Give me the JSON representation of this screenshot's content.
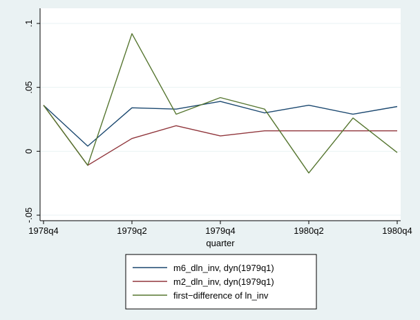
{
  "chart_data": {
    "type": "line",
    "x": [
      "1978q4",
      "1979q1",
      "1979q2",
      "1979q3",
      "1979q4",
      "1980q1",
      "1980q2",
      "1980q3",
      "1980q4"
    ],
    "x_tick_labels": [
      "1978q4",
      "1979q2",
      "1979q4",
      "1980q2",
      "1980q4"
    ],
    "xlabel": "quarter",
    "ylabel": "",
    "ylim": [
      -0.05,
      0.1
    ],
    "y_ticks": [
      -0.05,
      0,
      0.05,
      0.1
    ],
    "y_tick_labels": [
      "-.05",
      "0",
      ".05",
      ".1"
    ],
    "grid": true,
    "legend_position": "bottom",
    "series": [
      {
        "name": "m6_dln_inv, dyn(1979q1)",
        "color": "#1a476f",
        "values": [
          0.036,
          0.004,
          0.034,
          0.033,
          0.039,
          0.03,
          0.036,
          0.029,
          0.035
        ]
      },
      {
        "name": "m2_dln_inv, dyn(1979q1)",
        "color": "#90353b",
        "values": [
          0.036,
          -0.011,
          0.01,
          0.02,
          0.012,
          0.016,
          0.016,
          0.016,
          0.016
        ]
      },
      {
        "name": "first−difference of ln_inv",
        "color": "#55752f",
        "values": [
          0.036,
          -0.011,
          0.092,
          0.029,
          0.042,
          0.033,
          -0.017,
          0.026,
          -0.001
        ]
      }
    ]
  }
}
